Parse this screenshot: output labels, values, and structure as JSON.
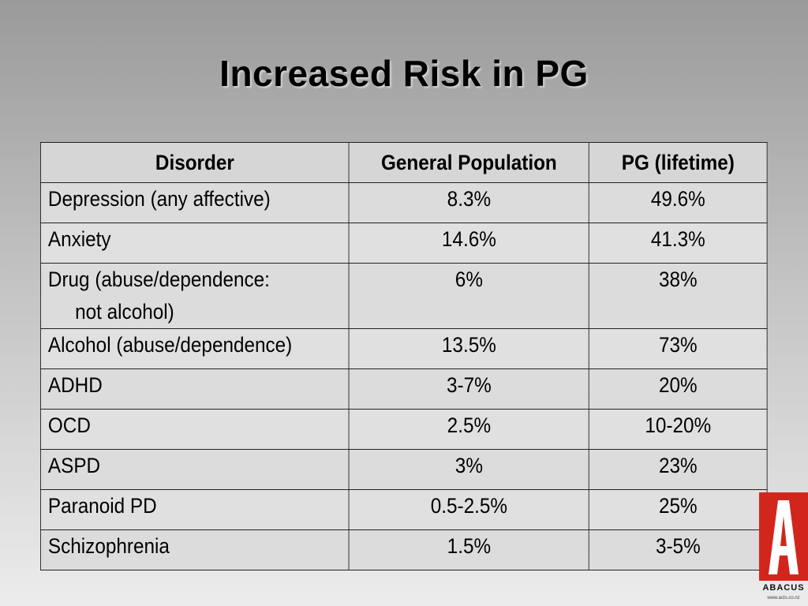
{
  "slide": {
    "title": "Increased Risk in PG"
  },
  "table": {
    "headers": [
      "Disorder",
      "General Population",
      "PG (lifetime)"
    ],
    "rows": [
      {
        "disorder": "Depression (any affective)",
        "general": "8.3%",
        "pg": "49.6%"
      },
      {
        "disorder": "Anxiety",
        "general": "14.6%",
        "pg": "41.3%"
      },
      {
        "disorder": "Drug (abuse/dependence:",
        "disorder_line2": "not alcohol)",
        "general": "6%",
        "pg": "38%"
      },
      {
        "disorder": "Alcohol (abuse/dependence)",
        "general": "13.5%",
        "pg": "73%"
      },
      {
        "disorder": "ADHD",
        "general": "3-7%",
        "pg": "20%"
      },
      {
        "disorder": "OCD",
        "general": "2.5%",
        "pg": "10-20%"
      },
      {
        "disorder": "ASPD",
        "general": "3%",
        "pg": "23%"
      },
      {
        "disorder": "Paranoid PD",
        "general": "0.5-2.5%",
        "pg": "25%"
      },
      {
        "disorder": "Schizophrenia",
        "general": "1.5%",
        "pg": "3-5%"
      }
    ]
  },
  "logo": {
    "letter": "A",
    "name": "ABACUS",
    "url": "www.acts.co.nz",
    "color": "#d2261d"
  }
}
